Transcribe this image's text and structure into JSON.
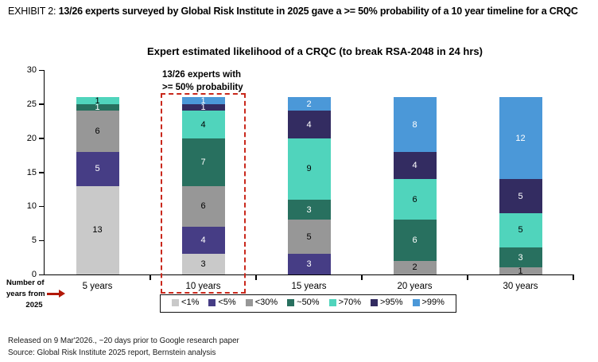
{
  "header": {
    "prefix": "EXHIBIT 2: ",
    "title": "13/26 experts surveyed by Global Risk Institute in 2025 gave a >= 50% probability of a 10 year timeline for a CRQC"
  },
  "chart_data": {
    "type": "bar",
    "stacked": true,
    "title": "Expert estimated likelihood of a CRQC (to break RSA-2048 in 24 hrs)",
    "categories": [
      "5 years",
      "10 years",
      "15 years",
      "20 years",
      "30 years"
    ],
    "series": [
      {
        "name": "<1%",
        "color": "#c9c9c9",
        "label_color": "#000000",
        "values": [
          13,
          3,
          0,
          0,
          0
        ]
      },
      {
        "name": "<5%",
        "color": "#463d85",
        "label_color": "#ffffff",
        "values": [
          5,
          4,
          3,
          0,
          0
        ]
      },
      {
        "name": "<30%",
        "color": "#979797",
        "label_color": "#000000",
        "values": [
          6,
          6,
          5,
          2,
          1
        ]
      },
      {
        "name": "~50%",
        "color": "#28705f",
        "label_color": "#ffffff",
        "values": [
          1,
          7,
          3,
          6,
          3
        ]
      },
      {
        "name": ">70%",
        "color": "#50d4bc",
        "label_color": "#000000",
        "values": [
          1,
          4,
          9,
          6,
          5
        ]
      },
      {
        "name": ">95%",
        "color": "#332c61",
        "label_color": "#ffffff",
        "values": [
          0,
          1,
          4,
          4,
          5
        ]
      },
      {
        "name": ">99%",
        "color": "#4b98d8",
        "label_color": "#ffffff",
        "values": [
          0,
          1,
          2,
          8,
          12
        ]
      }
    ],
    "ylim": [
      0,
      30
    ],
    "yticks": [
      0,
      5,
      10,
      15,
      20,
      25,
      30
    ],
    "grid": false,
    "legend_position": "bottom",
    "annotation": {
      "line1": "13/26 experts with",
      "line2": ">= 50% probability",
      "highlight_category": "10 years",
      "highlight_color": "#c9281c"
    },
    "xlabel_note": {
      "line1": "Number of",
      "line2": "years from",
      "line3": "2025"
    }
  },
  "footer": {
    "line1": "Released on 9 Mar'2026., ~20 days prior to Google research paper",
    "line2": "Source: Global Risk Institute 2025 report, Bernstein analysis"
  }
}
